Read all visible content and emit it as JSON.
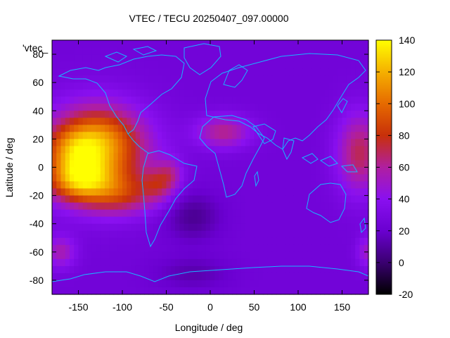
{
  "chart_data": {
    "type": "heatmap",
    "title": "VTEC / TECU 20250407_097.00000",
    "xlabel": "Longitude / deg",
    "ylabel": "Latitude / deg",
    "series_label": "'vtec_",
    "xlim": [
      -180,
      180
    ],
    "ylim": [
      -90,
      90
    ],
    "x_ticks": [
      -150,
      -100,
      -50,
      0,
      50,
      100,
      150
    ],
    "y_ticks": [
      -80,
      -60,
      -40,
      -20,
      0,
      20,
      40,
      60,
      80
    ],
    "colorbar": {
      "range": [
        -20,
        140
      ],
      "ticks": [
        -20,
        0,
        20,
        40,
        60,
        80,
        100,
        120,
        140
      ],
      "palette": [
        "#000000",
        "#3a0070",
        "#6a00d0",
        "#8a10f0",
        "#b01fa0",
        "#c8300a",
        "#e66a00",
        "#f5b000",
        "#ffff00"
      ]
    },
    "grid": false,
    "background_value": 25,
    "features": [
      {
        "lon": -130,
        "lat": 10,
        "sx": 40,
        "sy": 22,
        "amp": 85
      },
      {
        "lon": -155,
        "lat": 12,
        "sx": 22,
        "sy": 12,
        "amp": 35
      },
      {
        "lon": -150,
        "lat": -10,
        "sx": 25,
        "sy": 10,
        "amp": 55
      },
      {
        "lon": -100,
        "lat": -20,
        "sx": 30,
        "sy": 10,
        "amp": 35
      },
      {
        "lon": -120,
        "lat": 25,
        "sx": 25,
        "sy": 12,
        "amp": 15
      },
      {
        "lon": -60,
        "lat": -12,
        "sx": 12,
        "sy": 8,
        "amp": 28
      },
      {
        "lon": -45,
        "lat": -5,
        "sx": 10,
        "sy": 8,
        "amp": 25
      },
      {
        "lon": 15,
        "lat": 25,
        "sx": 22,
        "sy": 8,
        "amp": 38
      },
      {
        "lon": 170,
        "lat": 10,
        "sx": 18,
        "sy": 20,
        "amp": 45
      },
      {
        "lon": 178,
        "lat": -60,
        "sx": 8,
        "sy": 8,
        "amp": 25
      },
      {
        "lon": -170,
        "lat": -60,
        "sx": 12,
        "sy": 8,
        "amp": 30
      },
      {
        "lon": -20,
        "lat": -35,
        "sx": 22,
        "sy": 12,
        "amp": -18
      },
      {
        "lon": -20,
        "lat": -75,
        "sx": 30,
        "sy": 8,
        "amp": -12
      }
    ]
  }
}
